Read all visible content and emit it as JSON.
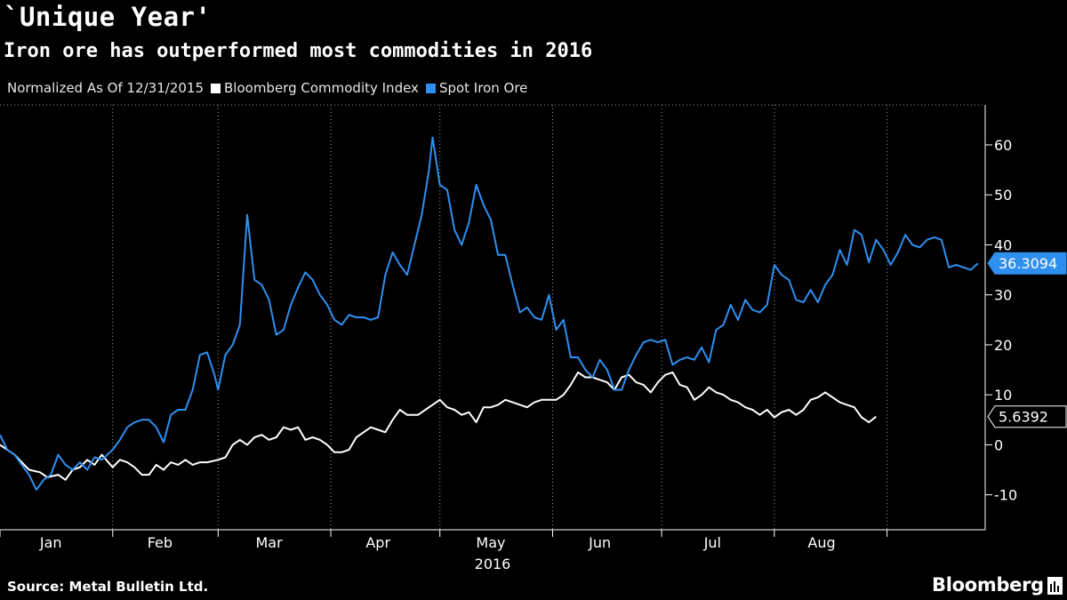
{
  "title": "`Unique Year'",
  "subtitle": "Iron ore has outperformed most commodities in 2016",
  "legend": {
    "note": "Normalized As Of 12/31/2015",
    "series_a": "Bloomberg Commodity Index",
    "series_b": "Spot Iron Ore"
  },
  "footer": {
    "source": "Source: Metal Bulletin Ltd.",
    "brand": "Bloomberg"
  },
  "colors": {
    "background": "#000000",
    "series_a": "#ffffff",
    "series_b": "#2f8ff0",
    "grid": "#9a9a9a"
  },
  "chart_data": {
    "type": "line",
    "x_unit": "date",
    "ylim": [
      -17,
      68
    ],
    "y_ticks": [
      -10,
      0,
      10,
      20,
      30,
      40,
      50,
      60
    ],
    "x_axis_year": "2016",
    "grid": "dotted vertical",
    "x_ticks": [
      {
        "label": "Jan",
        "date": "2016-01-15"
      },
      {
        "label": "Feb",
        "date": "2016-02-14"
      },
      {
        "label": "Mar",
        "date": "2016-03-15"
      },
      {
        "label": "Apr",
        "date": "2016-04-14"
      },
      {
        "label": "May",
        "date": "2016-05-15"
      },
      {
        "label": "Jun",
        "date": "2016-06-14"
      },
      {
        "label": "Jul",
        "date": "2016-07-15"
      },
      {
        "label": "Aug",
        "date": "2016-08-14"
      }
    ],
    "gridline_dates": [
      "2016-01-01",
      "2016-02-01",
      "2016-03-01",
      "2016-04-01",
      "2016-05-01",
      "2016-06-01",
      "2016-07-01",
      "2016-08-01",
      "2016-09-01"
    ],
    "series": [
      {
        "name": "Bloomberg Commodity Index",
        "color": "#ffffff",
        "last_value": "5.6392",
        "points": [
          [
            "2016-01-01",
            0
          ],
          [
            "2016-01-03",
            -1
          ],
          [
            "2016-01-05",
            -2
          ],
          [
            "2016-01-07",
            -3.5
          ],
          [
            "2016-01-09",
            -5
          ],
          [
            "2016-01-12",
            -5.5
          ],
          [
            "2016-01-14",
            -6.5
          ],
          [
            "2016-01-17",
            -6
          ],
          [
            "2016-01-19",
            -7
          ],
          [
            "2016-01-21",
            -5
          ],
          [
            "2016-01-23",
            -4.5
          ],
          [
            "2016-01-25",
            -3
          ],
          [
            "2016-01-27",
            -4
          ],
          [
            "2016-01-29",
            -2
          ],
          [
            "2016-02-01",
            -4.5
          ],
          [
            "2016-02-03",
            -3
          ],
          [
            "2016-02-05",
            -3.5
          ],
          [
            "2016-02-07",
            -4.5
          ],
          [
            "2016-02-09",
            -6
          ],
          [
            "2016-02-11",
            -6
          ],
          [
            "2016-02-13",
            -4
          ],
          [
            "2016-02-15",
            -5
          ],
          [
            "2016-02-17",
            -3.5
          ],
          [
            "2016-02-19",
            -4
          ],
          [
            "2016-02-21",
            -3
          ],
          [
            "2016-02-23",
            -4
          ],
          [
            "2016-02-25",
            -3.5
          ],
          [
            "2016-02-27",
            -3.5
          ],
          [
            "2016-03-01",
            -3
          ],
          [
            "2016-03-03",
            -2.5
          ],
          [
            "2016-03-05",
            0
          ],
          [
            "2016-03-07",
            1
          ],
          [
            "2016-03-09",
            0
          ],
          [
            "2016-03-11",
            1.5
          ],
          [
            "2016-03-13",
            2
          ],
          [
            "2016-03-15",
            1
          ],
          [
            "2016-03-17",
            1.5
          ],
          [
            "2016-03-19",
            3.5
          ],
          [
            "2016-03-21",
            3
          ],
          [
            "2016-03-23",
            3.5
          ],
          [
            "2016-03-25",
            1
          ],
          [
            "2016-03-27",
            1.5
          ],
          [
            "2016-03-29",
            1
          ],
          [
            "2016-03-31",
            0
          ],
          [
            "2016-04-02",
            -1.5
          ],
          [
            "2016-04-04",
            -1.5
          ],
          [
            "2016-04-06",
            -1
          ],
          [
            "2016-04-08",
            1.5
          ],
          [
            "2016-04-10",
            2.5
          ],
          [
            "2016-04-12",
            3.5
          ],
          [
            "2016-04-14",
            3
          ],
          [
            "2016-04-16",
            2.5
          ],
          [
            "2016-04-18",
            5
          ],
          [
            "2016-04-20",
            7
          ],
          [
            "2016-04-22",
            6
          ],
          [
            "2016-04-25",
            6
          ],
          [
            "2016-04-27",
            7
          ],
          [
            "2016-04-29",
            8
          ],
          [
            "2016-05-01",
            9
          ],
          [
            "2016-05-03",
            7.5
          ],
          [
            "2016-05-05",
            7
          ],
          [
            "2016-05-07",
            6
          ],
          [
            "2016-05-09",
            6.5
          ],
          [
            "2016-05-11",
            4.5
          ],
          [
            "2016-05-13",
            7.5
          ],
          [
            "2016-05-15",
            7.5
          ],
          [
            "2016-05-17",
            8
          ],
          [
            "2016-05-19",
            9
          ],
          [
            "2016-05-21",
            8.5
          ],
          [
            "2016-05-23",
            8
          ],
          [
            "2016-05-25",
            7.5
          ],
          [
            "2016-05-27",
            8.5
          ],
          [
            "2016-05-29",
            9
          ],
          [
            "2016-05-31",
            9
          ],
          [
            "2016-06-02",
            9
          ],
          [
            "2016-06-04",
            10
          ],
          [
            "2016-06-06",
            12
          ],
          [
            "2016-06-08",
            14.5
          ],
          [
            "2016-06-10",
            13.5
          ],
          [
            "2016-06-12",
            13.5
          ],
          [
            "2016-06-14",
            13
          ],
          [
            "2016-06-16",
            12.5
          ],
          [
            "2016-06-18",
            11
          ],
          [
            "2016-06-20",
            13.5
          ],
          [
            "2016-06-22",
            14
          ],
          [
            "2016-06-24",
            12.5
          ],
          [
            "2016-06-26",
            12
          ],
          [
            "2016-06-28",
            10.5
          ],
          [
            "2016-06-30",
            12.5
          ],
          [
            "2016-07-02",
            14
          ],
          [
            "2016-07-04",
            14.5
          ],
          [
            "2016-07-06",
            12
          ],
          [
            "2016-07-08",
            11.5
          ],
          [
            "2016-07-10",
            9
          ],
          [
            "2016-07-12",
            10
          ],
          [
            "2016-07-14",
            11.5
          ],
          [
            "2016-07-16",
            10.5
          ],
          [
            "2016-07-18",
            10
          ],
          [
            "2016-07-20",
            9
          ],
          [
            "2016-07-22",
            8.5
          ],
          [
            "2016-07-24",
            7.5
          ],
          [
            "2016-07-26",
            7
          ],
          [
            "2016-07-28",
            6
          ],
          [
            "2016-07-30",
            7
          ],
          [
            "2016-08-01",
            5.5
          ],
          [
            "2016-08-03",
            6.5
          ],
          [
            "2016-08-05",
            7
          ],
          [
            "2016-08-07",
            6
          ],
          [
            "2016-08-09",
            7
          ],
          [
            "2016-08-11",
            9
          ],
          [
            "2016-08-13",
            9.5
          ],
          [
            "2016-08-15",
            10.5
          ],
          [
            "2016-08-17",
            9.5
          ],
          [
            "2016-08-19",
            8.5
          ],
          [
            "2016-08-21",
            8
          ],
          [
            "2016-08-23",
            7.5
          ],
          [
            "2016-08-25",
            5.5
          ],
          [
            "2016-08-27",
            4.5
          ],
          [
            "2016-08-29",
            5.6392
          ]
        ]
      },
      {
        "name": "Spot Iron Ore",
        "color": "#2f8ff0",
        "last_value": "36.3094",
        "points": [
          [
            "2016-01-01",
            2
          ],
          [
            "2016-01-03",
            -1
          ],
          [
            "2016-01-05",
            -2
          ],
          [
            "2016-01-07",
            -4
          ],
          [
            "2016-01-09",
            -6
          ],
          [
            "2016-01-11",
            -9
          ],
          [
            "2016-01-13",
            -7
          ],
          [
            "2016-01-15",
            -6
          ],
          [
            "2016-01-17",
            -2
          ],
          [
            "2016-01-19",
            -4
          ],
          [
            "2016-01-21",
            -5
          ],
          [
            "2016-01-23",
            -3.5
          ],
          [
            "2016-01-25",
            -5
          ],
          [
            "2016-01-27",
            -2.5
          ],
          [
            "2016-01-29",
            -3
          ],
          [
            "2016-02-01",
            -1
          ],
          [
            "2016-02-03",
            1
          ],
          [
            "2016-02-05",
            3.5
          ],
          [
            "2016-02-07",
            4.5
          ],
          [
            "2016-02-09",
            5
          ],
          [
            "2016-02-11",
            5
          ],
          [
            "2016-02-13",
            3.5
          ],
          [
            "2016-02-15",
            0.5
          ],
          [
            "2016-02-17",
            6
          ],
          [
            "2016-02-19",
            7
          ],
          [
            "2016-02-21",
            7
          ],
          [
            "2016-02-23",
            11
          ],
          [
            "2016-02-25",
            18
          ],
          [
            "2016-02-27",
            18.5
          ],
          [
            "2016-02-29",
            14
          ],
          [
            "2016-03-01",
            11
          ],
          [
            "2016-03-03",
            18
          ],
          [
            "2016-03-05",
            20
          ],
          [
            "2016-03-07",
            24
          ],
          [
            "2016-03-09",
            46
          ],
          [
            "2016-03-11",
            33
          ],
          [
            "2016-03-13",
            32
          ],
          [
            "2016-03-15",
            29
          ],
          [
            "2016-03-17",
            22
          ],
          [
            "2016-03-19",
            23
          ],
          [
            "2016-03-21",
            28
          ],
          [
            "2016-03-23",
            31.5
          ],
          [
            "2016-03-25",
            34.5
          ],
          [
            "2016-03-27",
            33
          ],
          [
            "2016-03-29",
            30
          ],
          [
            "2016-03-31",
            28
          ],
          [
            "2016-04-02",
            25
          ],
          [
            "2016-04-04",
            24
          ],
          [
            "2016-04-06",
            26
          ],
          [
            "2016-04-08",
            25.5
          ],
          [
            "2016-04-10",
            25.5
          ],
          [
            "2016-04-12",
            25
          ],
          [
            "2016-04-14",
            25.5
          ],
          [
            "2016-04-16",
            34
          ],
          [
            "2016-04-18",
            38.5
          ],
          [
            "2016-04-20",
            36
          ],
          [
            "2016-04-22",
            34
          ],
          [
            "2016-04-24",
            40
          ],
          [
            "2016-04-26",
            46
          ],
          [
            "2016-04-28",
            55
          ],
          [
            "2016-04-29",
            61.5
          ],
          [
            "2016-05-01",
            52
          ],
          [
            "2016-05-03",
            51
          ],
          [
            "2016-05-05",
            43
          ],
          [
            "2016-05-07",
            40
          ],
          [
            "2016-05-09",
            44.5
          ],
          [
            "2016-05-11",
            52
          ],
          [
            "2016-05-13",
            48
          ],
          [
            "2016-05-15",
            45
          ],
          [
            "2016-05-17",
            38
          ],
          [
            "2016-05-19",
            38
          ],
          [
            "2016-05-21",
            32
          ],
          [
            "2016-05-23",
            26.5
          ],
          [
            "2016-05-25",
            27.5
          ],
          [
            "2016-05-27",
            25.5
          ],
          [
            "2016-05-29",
            25
          ],
          [
            "2016-05-31",
            30
          ],
          [
            "2016-06-02",
            23
          ],
          [
            "2016-06-04",
            25
          ],
          [
            "2016-06-06",
            17.5
          ],
          [
            "2016-06-08",
            17.5
          ],
          [
            "2016-06-10",
            15
          ],
          [
            "2016-06-12",
            13.5
          ],
          [
            "2016-06-14",
            17
          ],
          [
            "2016-06-16",
            15
          ],
          [
            "2016-06-18",
            11
          ],
          [
            "2016-06-20",
            11
          ],
          [
            "2016-06-22",
            15
          ],
          [
            "2016-06-24",
            18
          ],
          [
            "2016-06-26",
            20.5
          ],
          [
            "2016-06-28",
            21
          ],
          [
            "2016-06-30",
            20.5
          ],
          [
            "2016-07-02",
            21
          ],
          [
            "2016-07-04",
            16
          ],
          [
            "2016-07-06",
            17
          ],
          [
            "2016-07-08",
            17.5
          ],
          [
            "2016-07-10",
            17
          ],
          [
            "2016-07-12",
            19.5
          ],
          [
            "2016-07-14",
            16.5
          ],
          [
            "2016-07-16",
            23
          ],
          [
            "2016-07-18",
            24
          ],
          [
            "2016-07-20",
            28
          ],
          [
            "2016-07-22",
            25
          ],
          [
            "2016-07-24",
            29
          ],
          [
            "2016-07-26",
            27
          ],
          [
            "2016-07-28",
            26.5
          ],
          [
            "2016-07-30",
            28
          ],
          [
            "2016-08-01",
            36
          ],
          [
            "2016-08-03",
            34
          ],
          [
            "2016-08-05",
            33
          ],
          [
            "2016-08-07",
            29
          ],
          [
            "2016-08-09",
            28.5
          ],
          [
            "2016-08-11",
            31
          ],
          [
            "2016-08-13",
            28.5
          ],
          [
            "2016-08-15",
            32
          ],
          [
            "2016-08-17",
            34
          ],
          [
            "2016-08-19",
            39
          ],
          [
            "2016-08-21",
            36
          ],
          [
            "2016-08-23",
            43
          ],
          [
            "2016-08-25",
            42
          ],
          [
            "2016-08-27",
            36.5
          ],
          [
            "2016-08-29",
            41
          ],
          [
            "2016-08-31",
            39
          ],
          [
            "2016-09-02",
            36
          ],
          [
            "2016-09-04",
            38.5
          ],
          [
            "2016-09-06",
            42
          ],
          [
            "2016-09-08",
            40
          ],
          [
            "2016-09-10",
            39.5
          ],
          [
            "2016-09-12",
            41
          ],
          [
            "2016-09-14",
            41.5
          ],
          [
            "2016-09-16",
            41
          ],
          [
            "2016-09-18",
            35.5
          ],
          [
            "2016-09-20",
            36
          ],
          [
            "2016-09-22",
            35.5
          ],
          [
            "2016-09-24",
            35
          ],
          [
            "2016-09-26",
            36.3094
          ]
        ]
      }
    ]
  }
}
